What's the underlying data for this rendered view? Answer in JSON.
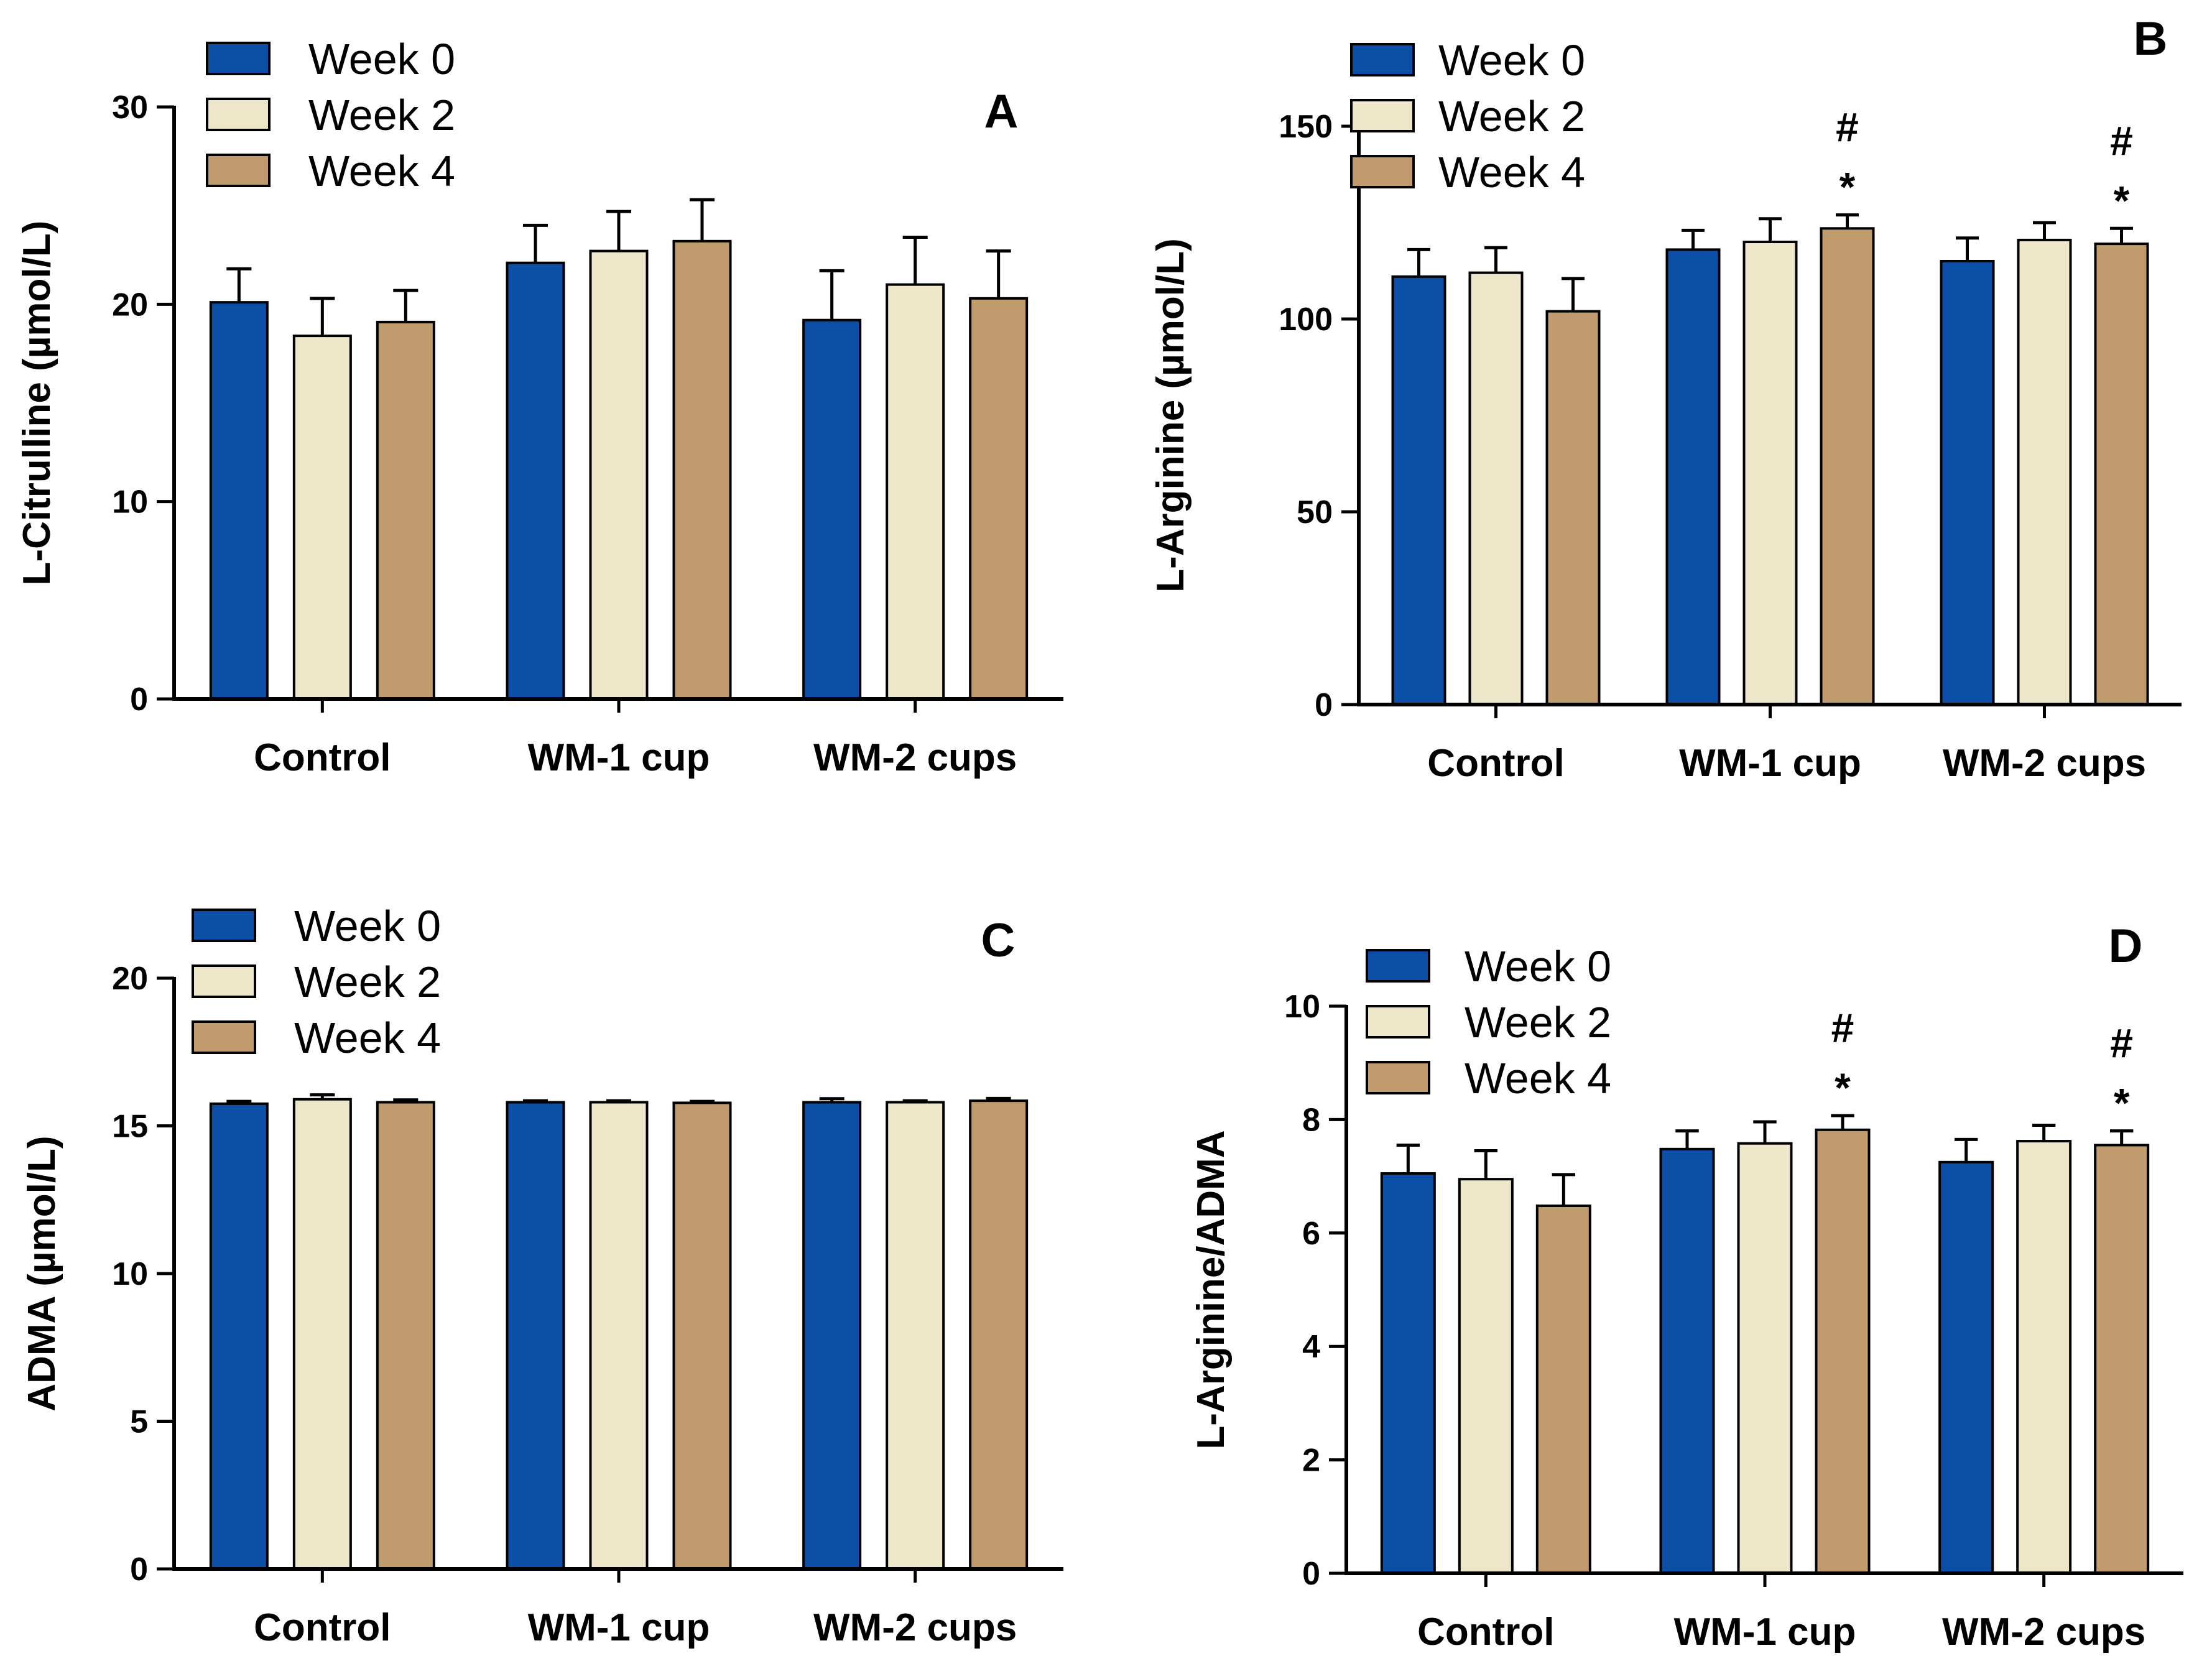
{
  "colors": {
    "week0": "#0b4fa6",
    "week2": "#eee6c8",
    "week4": "#c09b6e",
    "axis": "#000000"
  },
  "legend": [
    "Week 0",
    "Week 2",
    "Week 4"
  ],
  "chart_data": [
    {
      "type": "bar",
      "panel": "A",
      "title": "",
      "ylabel": "L-Citrulline (µmol/L)",
      "xlabel": "",
      "ylim": [
        0,
        30
      ],
      "yticks": [
        "0",
        "10",
        "20",
        "30"
      ],
      "categories": [
        "Control",
        "WM-1 cup",
        "WM-2 cups"
      ],
      "series": [
        {
          "name": "Week 0",
          "values": [
            20.1,
            22.1,
            19.2
          ],
          "errors": [
            1.7,
            1.9,
            2.5
          ]
        },
        {
          "name": "Week 2",
          "values": [
            18.4,
            22.7,
            21.0
          ],
          "errors": [
            1.9,
            2.0,
            2.4
          ]
        },
        {
          "name": "Week 4",
          "values": [
            19.1,
            23.2,
            20.3
          ],
          "errors": [
            1.6,
            2.1,
            2.4
          ]
        }
      ],
      "annotations": []
    },
    {
      "type": "bar",
      "panel": "B",
      "title": "",
      "ylabel": "L-Arginine (µmol/L)",
      "xlabel": "",
      "ylim": [
        0,
        150
      ],
      "yticks": [
        "0",
        "50",
        "100",
        "150"
      ],
      "categories": [
        "Control",
        "WM-1 cup",
        "WM-2 cups"
      ],
      "series": [
        {
          "name": "Week 0",
          "values": [
            111,
            118,
            115
          ],
          "errors": [
            7,
            5,
            6
          ]
        },
        {
          "name": "Week 2",
          "values": [
            112,
            120,
            120.5
          ],
          "errors": [
            6.5,
            6,
            4.5
          ]
        },
        {
          "name": "Week 4",
          "values": [
            102,
            123.5,
            119.5
          ],
          "errors": [
            8.5,
            3.5,
            4
          ]
        }
      ],
      "annotations": [
        {
          "category": "WM-1 cup",
          "series": "Week 4",
          "marks": [
            "#",
            "*"
          ]
        },
        {
          "category": "WM-2 cups",
          "series": "Week 4",
          "marks": [
            "#",
            "*"
          ]
        }
      ]
    },
    {
      "type": "bar",
      "panel": "C",
      "title": "",
      "ylabel": "ADMA (µmol/L)",
      "xlabel": "",
      "ylim": [
        0,
        20
      ],
      "yticks": [
        "0",
        "5",
        "10",
        "15",
        "20"
      ],
      "categories": [
        "Control",
        "WM-1 cup",
        "WM-2 cups"
      ],
      "series": [
        {
          "name": "Week 0",
          "values": [
            15.75,
            15.8,
            15.8
          ],
          "errors": [
            0.08,
            0.05,
            0.12
          ]
        },
        {
          "name": "Week 2",
          "values": [
            15.9,
            15.8,
            15.8
          ],
          "errors": [
            0.15,
            0.05,
            0.05
          ]
        },
        {
          "name": "Week 4",
          "values": [
            15.8,
            15.78,
            15.85
          ],
          "errors": [
            0.08,
            0.05,
            0.08
          ]
        }
      ],
      "annotations": []
    },
    {
      "type": "bar",
      "panel": "D",
      "title": "",
      "ylabel": "L-Arginine/ADMA",
      "xlabel": "",
      "ylim": [
        0,
        10
      ],
      "yticks": [
        "0",
        "2",
        "4",
        "6",
        "8",
        "10"
      ],
      "categories": [
        "Control",
        "WM-1 cup",
        "WM-2 cups"
      ],
      "series": [
        {
          "name": "Week 0",
          "values": [
            7.05,
            7.48,
            7.25
          ],
          "errors": [
            0.5,
            0.32,
            0.4
          ]
        },
        {
          "name": "Week 2",
          "values": [
            6.95,
            7.58,
            7.62
          ],
          "errors": [
            0.5,
            0.38,
            0.28
          ]
        },
        {
          "name": "Week 4",
          "values": [
            6.48,
            7.82,
            7.55
          ],
          "errors": [
            0.55,
            0.25,
            0.25
          ]
        }
      ],
      "annotations": [
        {
          "category": "WM-1 cup",
          "series": "Week 4",
          "marks": [
            "#",
            "*"
          ]
        },
        {
          "category": "WM-2 cups",
          "series": "Week 4",
          "marks": [
            "#",
            "*"
          ]
        }
      ]
    }
  ]
}
